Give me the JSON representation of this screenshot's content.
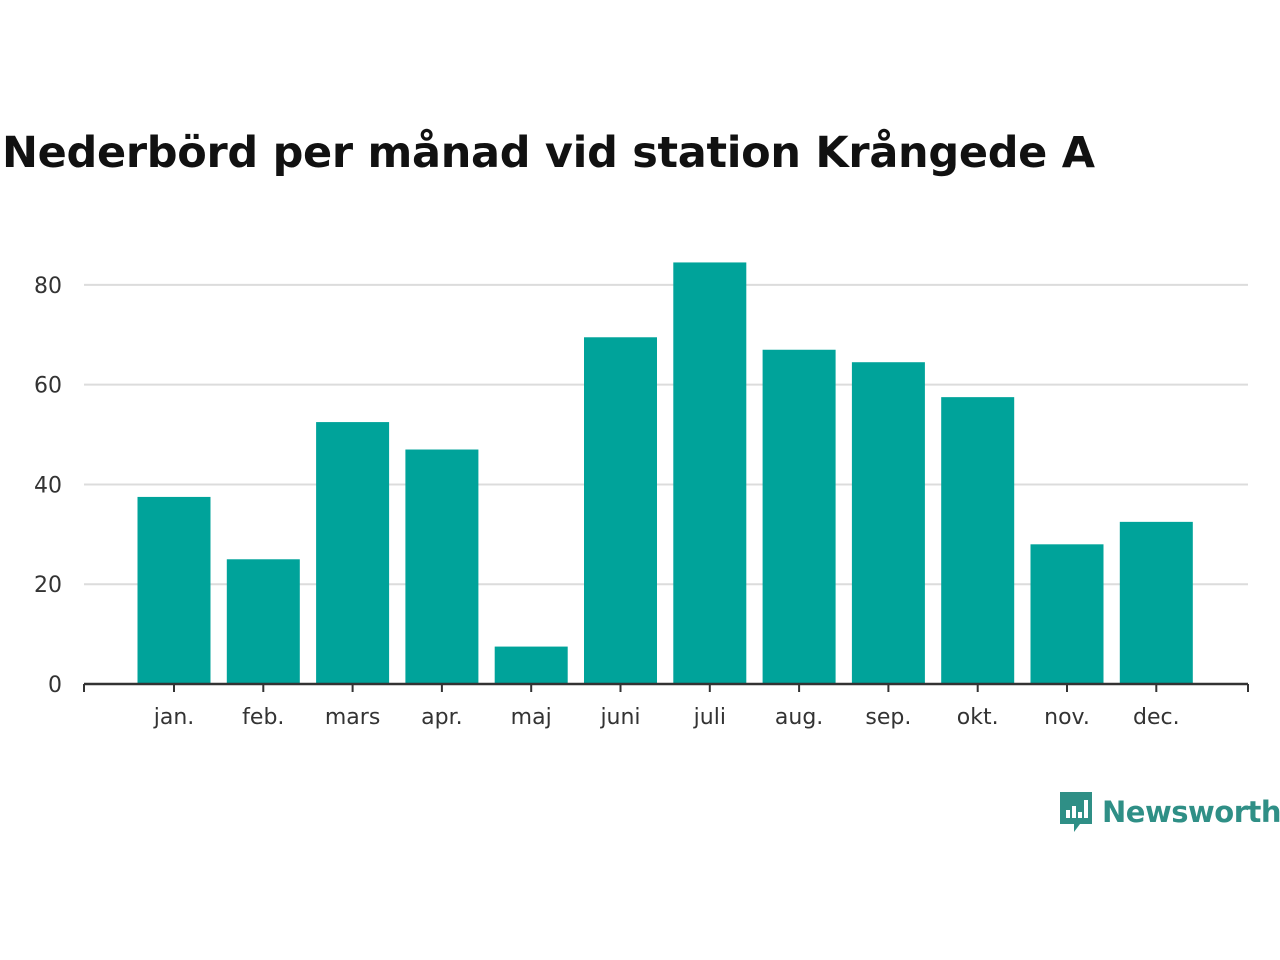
{
  "chart_data": {
    "type": "bar",
    "title": "Nederbörd per månad vid station Krångede A",
    "xlabel": "",
    "ylabel": "",
    "categories": [
      "jan.",
      "feb.",
      "mars",
      "apr.",
      "maj",
      "juni",
      "juli",
      "aug.",
      "sep.",
      "okt.",
      "nov.",
      "dec."
    ],
    "values": [
      37.5,
      25.0,
      52.5,
      47.0,
      7.5,
      69.5,
      84.5,
      67.0,
      64.5,
      57.5,
      28.0,
      32.5
    ],
    "ylim": [
      0,
      90
    ],
    "yticks": [
      0,
      20,
      40,
      60,
      80
    ],
    "grid": true,
    "bar_color": "#00a39a"
  },
  "brand": {
    "name": "Newsworthy",
    "icon": "newsworthy-logo-icon",
    "color": "#2f8f86"
  }
}
